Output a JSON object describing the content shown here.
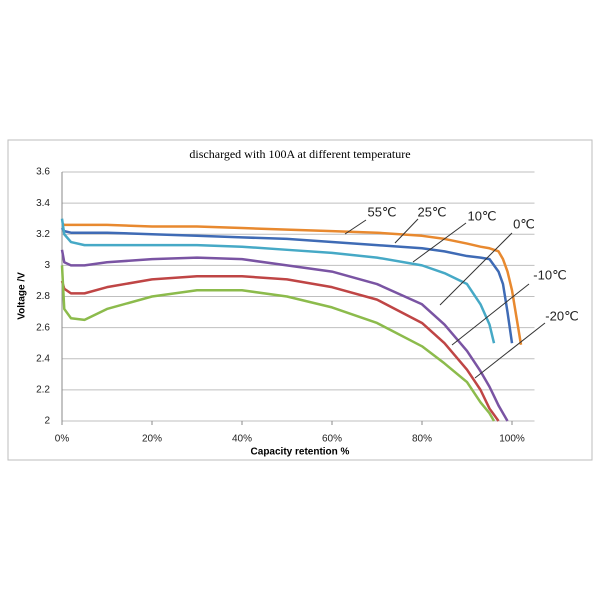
{
  "chart_data": {
    "type": "line",
    "title": "discharged with 100A at different temperature",
    "x_label": "Capacity retention %",
    "y_label": "Voltage /V",
    "x": [
      0,
      0.5,
      2,
      5,
      10,
      20,
      30,
      40,
      50,
      60,
      70,
      80,
      85,
      90,
      93,
      95,
      96,
      97,
      98,
      99,
      100,
      102
    ],
    "series": [
      {
        "name": "55℃",
        "color": "#e8892f",
        "values": [
          3.27,
          3.26,
          3.26,
          3.26,
          3.26,
          3.25,
          3.25,
          3.24,
          3.23,
          3.22,
          3.21,
          3.19,
          3.17,
          3.14,
          3.12,
          3.11,
          3.1,
          3.09,
          3.04,
          2.96,
          2.84,
          2.49
        ]
      },
      {
        "name": "25℃",
        "color": "#3f6bb5",
        "values": [
          3.24,
          3.22,
          3.21,
          3.21,
          3.21,
          3.2,
          3.19,
          3.18,
          3.17,
          3.15,
          3.13,
          3.11,
          3.09,
          3.06,
          3.05,
          3.04,
          3.0,
          2.96,
          2.88,
          2.7,
          2.5,
          null
        ]
      },
      {
        "name": "10℃",
        "color": "#46a9c6",
        "values": [
          3.3,
          3.2,
          3.15,
          3.13,
          3.13,
          3.13,
          3.13,
          3.12,
          3.1,
          3.08,
          3.05,
          3.0,
          2.95,
          2.88,
          2.75,
          2.62,
          2.5,
          null,
          null,
          null,
          null,
          null
        ]
      },
      {
        "name": "0℃",
        "color": "#7a54a3",
        "values": [
          3.1,
          3.02,
          3.0,
          3.0,
          3.02,
          3.04,
          3.05,
          3.04,
          3.0,
          2.96,
          2.88,
          2.75,
          2.62,
          2.45,
          2.32,
          2.22,
          2.16,
          2.1,
          2.05,
          2.0,
          null,
          null
        ]
      },
      {
        "name": "-10℃",
        "color": "#bf4545",
        "values": [
          2.9,
          2.85,
          2.82,
          2.82,
          2.86,
          2.91,
          2.93,
          2.93,
          2.91,
          2.86,
          2.78,
          2.63,
          2.5,
          2.33,
          2.2,
          2.08,
          2.04,
          2.0,
          null,
          null,
          null,
          null
        ]
      },
      {
        "name": "-20℃",
        "color": "#8cbb4c",
        "values": [
          3.0,
          2.72,
          2.66,
          2.65,
          2.72,
          2.8,
          2.84,
          2.84,
          2.8,
          2.73,
          2.63,
          2.48,
          2.37,
          2.25,
          2.12,
          2.05,
          2.0,
          null,
          null,
          null,
          null,
          null
        ]
      }
    ],
    "xlim": [
      0,
      105
    ],
    "ylim": [
      2,
      3.6
    ],
    "xticks": [
      {
        "value": 0,
        "label": "0%"
      },
      {
        "value": 20,
        "label": "20%"
      },
      {
        "value": 40,
        "label": "40%"
      },
      {
        "value": 60,
        "label": "60%"
      },
      {
        "value": 80,
        "label": "80%"
      },
      {
        "value": 100,
        "label": "100%"
      }
    ],
    "yticks": [
      2,
      2.2,
      2.4,
      2.6,
      2.8,
      3,
      3.2,
      3.4,
      3.6
    ],
    "grid": true
  }
}
